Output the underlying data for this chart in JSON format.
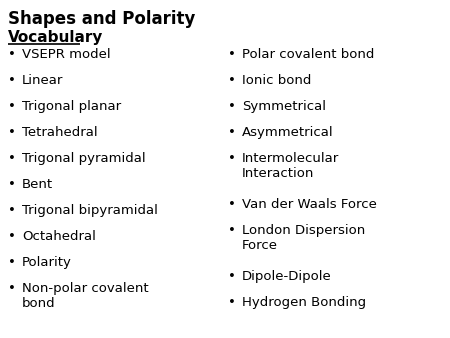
{
  "title": "Shapes and Polarity",
  "subtitle": "Vocabulary",
  "left_items": [
    "VSEPR model",
    "Linear",
    "Trigonal planar",
    "Tetrahedral",
    "Trigonal pyramidal",
    "Bent",
    "Trigonal bipyramidal",
    "Octahedral",
    "Polarity",
    "Non-polar covalent\nbond"
  ],
  "right_items": [
    "Polar covalent bond",
    "Ionic bond",
    "Symmetrical",
    "Asymmetrical",
    "Intermolecular\nInteraction",
    "Van der Waals Force",
    "London Dispersion\nForce",
    "Dipole-Dipole",
    "Hydrogen Bonding"
  ],
  "background_color": "#ffffff",
  "text_color": "#000000",
  "title_fontsize": 12,
  "subtitle_fontsize": 11,
  "item_fontsize": 9.5
}
